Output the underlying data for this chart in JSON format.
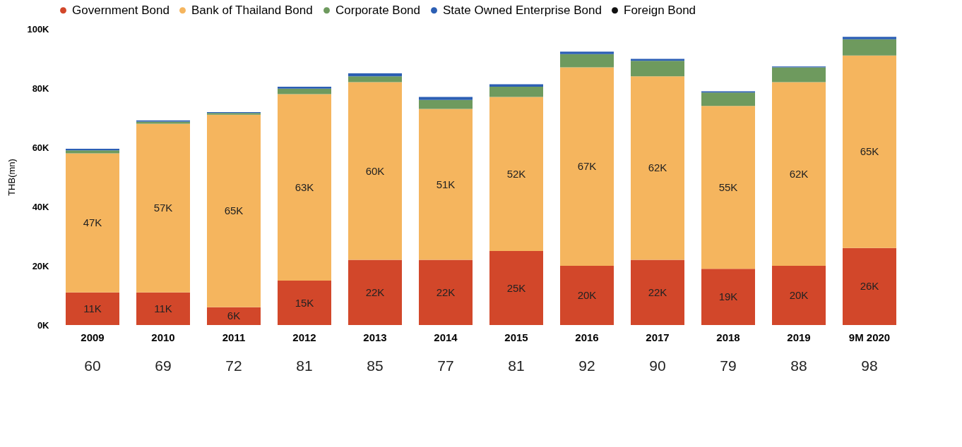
{
  "chart_data": {
    "type": "bar",
    "stacked": true,
    "ylabel": "THB(mn)",
    "categories": [
      "2009",
      "2010",
      "2011",
      "2012",
      "2013",
      "2014",
      "2015",
      "2016",
      "2017",
      "2018",
      "2019",
      "9M 2020"
    ],
    "series": [
      {
        "name": "Government Bond",
        "color": "#d2472a",
        "values": [
          11,
          11,
          6,
          15,
          22,
          22,
          25,
          20,
          22,
          19,
          20,
          26
        ],
        "value_labels": [
          "11K",
          "11K",
          "6K",
          "15K",
          "22K",
          "22K",
          "25K",
          "20K",
          "22K",
          "19K",
          "20K",
          "26K"
        ]
      },
      {
        "name": "Bank of Thailand Bond",
        "color": "#f5b55e",
        "values": [
          47,
          57,
          65,
          63,
          60,
          51,
          52,
          67,
          62,
          55,
          62,
          65
        ],
        "value_labels": [
          "47K",
          "57K",
          "65K",
          "63K",
          "60K",
          "51K",
          "52K",
          "67K",
          "62K",
          "55K",
          "62K",
          "65K"
        ]
      },
      {
        "name": "Corporate Bond",
        "color": "#6e9a5e",
        "values": [
          1,
          0.7,
          0.6,
          1.8,
          2,
          3,
          3.5,
          4.5,
          5.2,
          4.5,
          5,
          5.5
        ]
      },
      {
        "name": "State Owned Enterprise Bond",
        "color": "#2c5fb4",
        "values": [
          0.5,
          0.4,
          0.3,
          0.7,
          1,
          1,
          0.8,
          0.8,
          0.7,
          0.4,
          0.3,
          0.8
        ]
      },
      {
        "name": "Foreign Bond",
        "color": "#111111",
        "values": [
          0,
          0,
          0,
          0,
          0,
          0,
          0,
          0,
          0,
          0,
          0,
          0
        ]
      }
    ],
    "totals": [
      "60",
      "69",
      "72",
      "81",
      "85",
      "77",
      "81",
      "92",
      "90",
      "79",
      "88",
      "98"
    ],
    "ylim": [
      0,
      100
    ],
    "yticks": [
      {
        "value": 0,
        "label": "0K"
      },
      {
        "value": 20,
        "label": "20K"
      },
      {
        "value": 40,
        "label": "40K"
      },
      {
        "value": 60,
        "label": "60K"
      },
      {
        "value": 80,
        "label": "80K"
      },
      {
        "value": 100,
        "label": "100K"
      }
    ],
    "grid": false,
    "legend": "top"
  }
}
